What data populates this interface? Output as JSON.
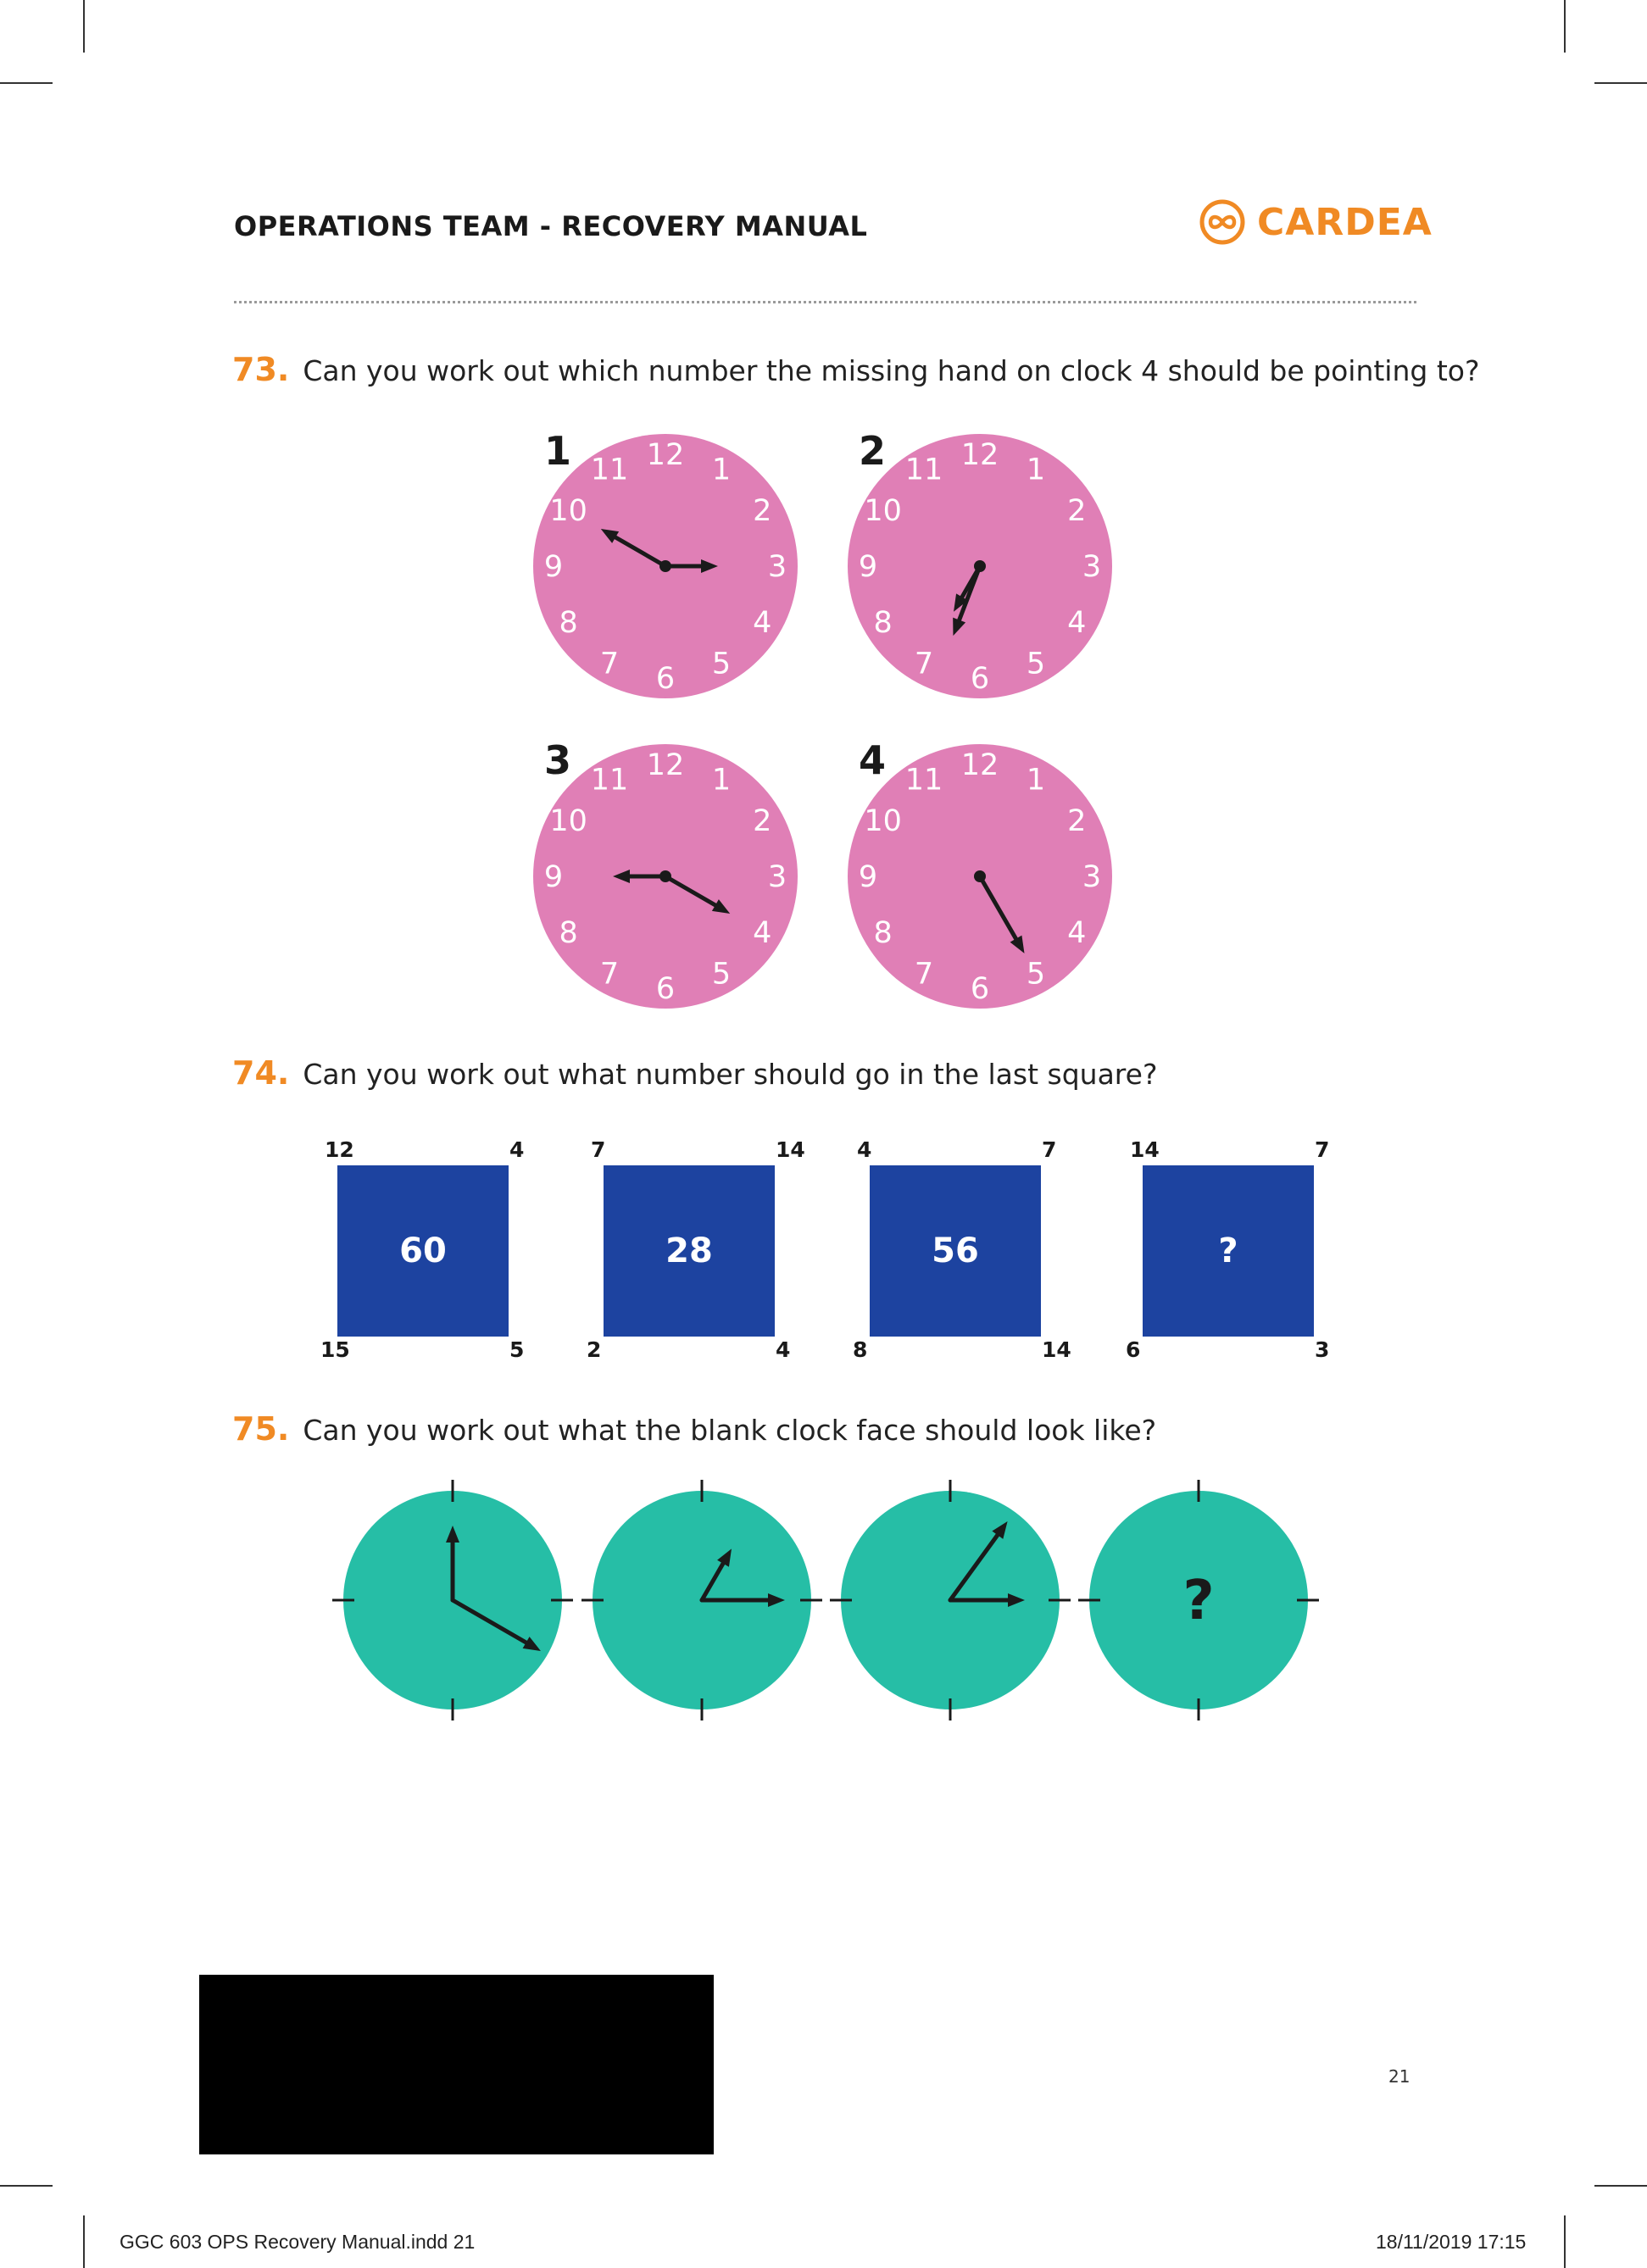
{
  "header": {
    "title": "OPERATIONS TEAM - RECOVERY MANUAL",
    "brand_name": "CARDEA",
    "brand_icon": "infinity-circle-icon",
    "brand_color": "#f08a24"
  },
  "questions": [
    {
      "number": "73.",
      "text": "Can you work out which number the missing hand on clock 4 should be pointing to?"
    },
    {
      "number": "74.",
      "text": "Can you work out what number should go in the last square?"
    },
    {
      "number": "75.",
      "text": "Can you work out what the blank clock face should look like?"
    }
  ],
  "q73": {
    "face_color": "#e07fb6",
    "dial_numbers": [
      "12",
      "1",
      "2",
      "3",
      "4",
      "5",
      "6",
      "7",
      "8",
      "9",
      "10",
      "11"
    ],
    "clocks": [
      {
        "label": "1",
        "hands": [
          3,
          10
        ]
      },
      {
        "label": "2",
        "hands": [
          7,
          6.7
        ]
      },
      {
        "label": "3",
        "hands": [
          9,
          4
        ]
      },
      {
        "label": "4",
        "hands": [
          5
        ]
      }
    ]
  },
  "q74": {
    "square_color": "#1d43a0",
    "squares": [
      {
        "top_left": "12",
        "top_right": "4",
        "bottom_left": "15",
        "bottom_right": "5",
        "center": "60"
      },
      {
        "top_left": "7",
        "top_right": "14",
        "bottom_left": "2",
        "bottom_right": "4",
        "center": "28"
      },
      {
        "top_left": "4",
        "top_right": "7",
        "bottom_left": "8",
        "bottom_right": "14",
        "center": "56"
      },
      {
        "top_left": "14",
        "top_right": "7",
        "bottom_left": "6",
        "bottom_right": "3",
        "center": "?"
      }
    ]
  },
  "q75": {
    "face_color": "#26bea6",
    "clocks": [
      {
        "hands": [
          12,
          4
        ],
        "center_text": ""
      },
      {
        "hands": [
          3,
          1
        ],
        "center_text": ""
      },
      {
        "hands": [
          3,
          1.2
        ],
        "center_text": ""
      },
      {
        "hands": [],
        "center_text": "?"
      }
    ]
  },
  "footer": {
    "page_number": "21",
    "slug_left": "GGC 603 OPS Recovery Manual.indd   21",
    "slug_right": "18/11/2019   17:15"
  }
}
